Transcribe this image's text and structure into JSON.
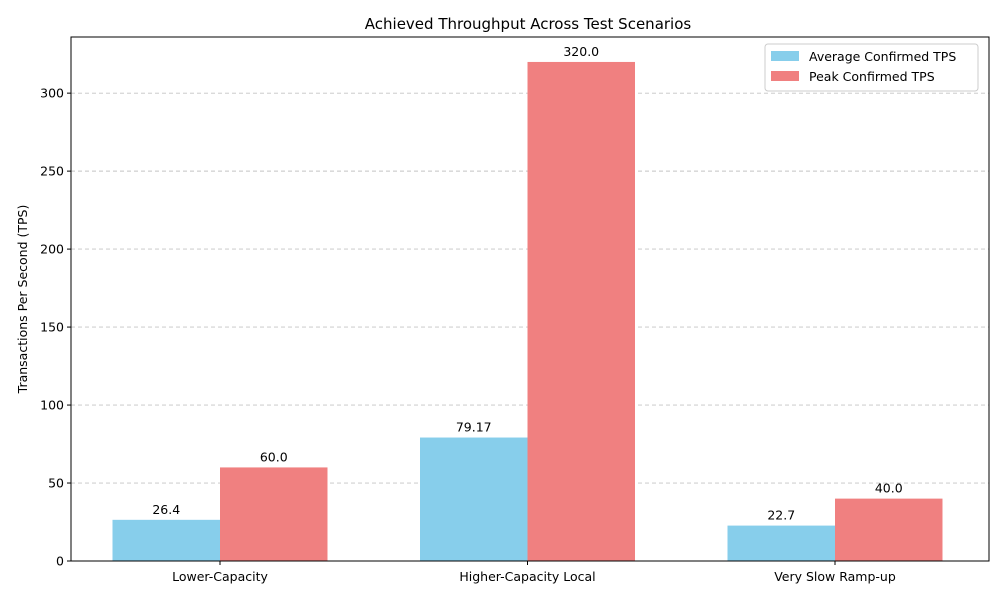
{
  "chart_data": {
    "type": "bar",
    "title": "Achieved Throughput Across Test Scenarios",
    "xlabel": "",
    "ylabel": "Transactions Per Second (TPS)",
    "categories": [
      "Lower-Capacity",
      "Higher-Capacity Local",
      "Very Slow Ramp-up"
    ],
    "series": [
      {
        "name": "Average Confirmed TPS",
        "values": [
          26.4,
          79.17,
          22.7
        ],
        "labels": [
          "26.4",
          "79.17",
          "22.7"
        ],
        "color": "#87CEEB"
      },
      {
        "name": "Peak Confirmed TPS",
        "values": [
          60.0,
          320.0,
          40.0
        ],
        "labels": [
          "60.0",
          "320.0",
          "40.0"
        ],
        "color": "#F08080"
      }
    ],
    "ylim": [
      0,
      336
    ],
    "yticks": [
      0,
      50,
      100,
      150,
      200,
      250,
      300
    ],
    "grid": "y-dashed",
    "legend_position": "top-right"
  }
}
